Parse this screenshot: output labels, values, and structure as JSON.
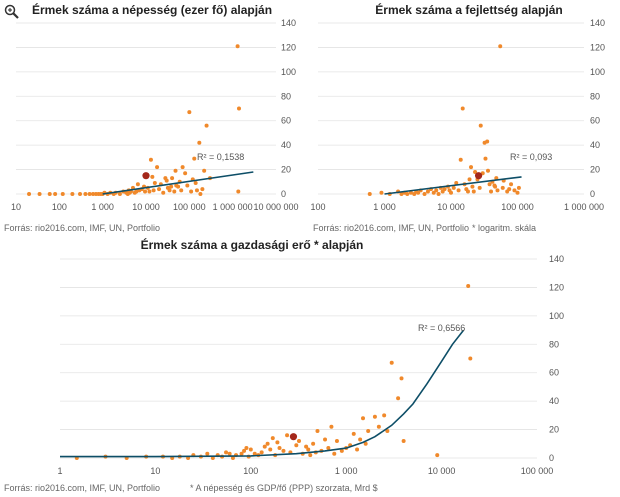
{
  "footnotes": {
    "source_top_left": "Forrás: rio2016.com, IMF, UN, Portfolio",
    "source_top_right": "Forrás: rio2016.com, IMF, UN, Portfolio",
    "note_top_right": "* logaritm. skála",
    "source_bottom": "Forrás: rio2016.com, IMF, UN, Portfolio",
    "note_bottom": "* A népesség és  GDP/fő (PPP) szorzata, Mrd $"
  },
  "icons": {
    "zoom": "magnifier-icon"
  },
  "colors": {
    "points": "#f0892b",
    "highlight": "#a4271a",
    "trend": "#0d4e67",
    "grid": "#e3e3e3"
  },
  "chart_data": [
    {
      "type": "scatter",
      "title": "Érmek száma a népesség (ezer fő) alapján",
      "xscale": "log",
      "xlim": [
        10,
        10000000
      ],
      "ylim": [
        0,
        140
      ],
      "x_tick_labels": [
        "10",
        "100",
        "1 000",
        "10 000",
        "100 000",
        "1 000 000",
        "10 000 000"
      ],
      "y_tick_labels": [
        "0",
        "20",
        "40",
        "60",
        "80",
        "100",
        "120",
        "140"
      ],
      "grid": "horizontal",
      "trend_label": "R² = 0,1538",
      "trend": {
        "x0": 1000,
        "y0": 0,
        "x1": 3000000,
        "y1": 18
      },
      "highlight": {
        "x": 10000,
        "y": 15
      },
      "points": [
        [
          20,
          0
        ],
        [
          35,
          0
        ],
        [
          60,
          0
        ],
        [
          80,
          0
        ],
        [
          120,
          0
        ],
        [
          200,
          0
        ],
        [
          300,
          0
        ],
        [
          400,
          0
        ],
        [
          500,
          0
        ],
        [
          600,
          0
        ],
        [
          700,
          0
        ],
        [
          800,
          0
        ],
        [
          900,
          0
        ],
        [
          1000,
          0
        ],
        [
          1100,
          1
        ],
        [
          1300,
          0
        ],
        [
          1500,
          1
        ],
        [
          1800,
          0
        ],
        [
          2000,
          1
        ],
        [
          2500,
          0
        ],
        [
          3000,
          2
        ],
        [
          3500,
          1
        ],
        [
          3800,
          0
        ],
        [
          4000,
          3
        ],
        [
          4200,
          1
        ],
        [
          4500,
          2
        ],
        [
          5000,
          5
        ],
        [
          5500,
          1
        ],
        [
          6000,
          2
        ],
        [
          6500,
          8
        ],
        [
          7000,
          3
        ],
        [
          8000,
          4
        ],
        [
          9000,
          6
        ],
        [
          9500,
          2
        ],
        [
          11000,
          5
        ],
        [
          12000,
          2
        ],
        [
          13000,
          28
        ],
        [
          14000,
          14
        ],
        [
          15000,
          3
        ],
        [
          16000,
          9
        ],
        [
          18000,
          22
        ],
        [
          20000,
          4
        ],
        [
          22000,
          8
        ],
        [
          25000,
          1
        ],
        [
          28000,
          13
        ],
        [
          30000,
          11
        ],
        [
          32000,
          5
        ],
        [
          35000,
          3
        ],
        [
          38000,
          6
        ],
        [
          40000,
          13
        ],
        [
          45000,
          2
        ],
        [
          48000,
          19
        ],
        [
          50000,
          7
        ],
        [
          55000,
          6
        ],
        [
          60000,
          10
        ],
        [
          65000,
          3
        ],
        [
          70000,
          22
        ],
        [
          80000,
          17
        ],
        [
          90000,
          7
        ],
        [
          100000,
          67
        ],
        [
          110000,
          2
        ],
        [
          120000,
          12
        ],
        [
          130000,
          29
        ],
        [
          140000,
          9
        ],
        [
          150000,
          3
        ],
        [
          170000,
          42
        ],
        [
          180000,
          0
        ],
        [
          200000,
          4
        ],
        [
          220000,
          19
        ],
        [
          250000,
          56
        ],
        [
          300000,
          13
        ],
        [
          1300000,
          121
        ],
        [
          1400000,
          70
        ],
        [
          1350000,
          2
        ]
      ]
    },
    {
      "type": "scatter",
      "title": "Érmek száma a fejlettség alapján",
      "xscale": "log",
      "xlim": [
        100,
        1000000
      ],
      "ylim": [
        0,
        140
      ],
      "x_tick_labels": [
        "100",
        "1 000",
        "10 000",
        "100 000",
        "1 000 000"
      ],
      "y_tick_labels": [
        "0",
        "20",
        "40",
        "60",
        "80",
        "100",
        "120",
        "140"
      ],
      "grid": "horizontal",
      "trend_label": "R² = 0,093",
      "trend": {
        "x0": 1000,
        "y0": 0,
        "x1": 115000,
        "y1": 14
      },
      "highlight": {
        "x": 26000,
        "y": 15
      },
      "points": [
        [
          600,
          0
        ],
        [
          900,
          1
        ],
        [
          1200,
          0
        ],
        [
          1600,
          2
        ],
        [
          1800,
          0
        ],
        [
          2000,
          1
        ],
        [
          2200,
          0
        ],
        [
          2500,
          1
        ],
        [
          2800,
          0
        ],
        [
          3000,
          2
        ],
        [
          3200,
          1
        ],
        [
          3500,
          3
        ],
        [
          4000,
          0
        ],
        [
          4500,
          2
        ],
        [
          5000,
          4
        ],
        [
          5500,
          1
        ],
        [
          6000,
          3
        ],
        [
          6500,
          0
        ],
        [
          7000,
          5
        ],
        [
          7500,
          2
        ],
        [
          8000,
          4
        ],
        [
          9000,
          6
        ],
        [
          9500,
          3
        ],
        [
          10000,
          1
        ],
        [
          11000,
          5
        ],
        [
          12000,
          9
        ],
        [
          13000,
          3
        ],
        [
          14000,
          28
        ],
        [
          15000,
          70
        ],
        [
          16000,
          8
        ],
        [
          17000,
          4
        ],
        [
          18000,
          2
        ],
        [
          19000,
          12
        ],
        [
          20000,
          22
        ],
        [
          21000,
          6
        ],
        [
          22000,
          2
        ],
        [
          23000,
          18
        ],
        [
          25000,
          12
        ],
        [
          27000,
          5
        ],
        [
          28000,
          56
        ],
        [
          30000,
          17
        ],
        [
          32000,
          42
        ],
        [
          33000,
          29
        ],
        [
          35000,
          43
        ],
        [
          36000,
          19
        ],
        [
          38000,
          8
        ],
        [
          40000,
          2
        ],
        [
          42000,
          10
        ],
        [
          45000,
          7
        ],
        [
          46000,
          6
        ],
        [
          48000,
          13
        ],
        [
          50000,
          3
        ],
        [
          55000,
          121
        ],
        [
          60000,
          5
        ],
        [
          62000,
          11
        ],
        [
          70000,
          2
        ],
        [
          75000,
          4
        ],
        [
          80000,
          8
        ],
        [
          90000,
          3
        ],
        [
          100000,
          1
        ],
        [
          105000,
          5
        ]
      ]
    },
    {
      "type": "scatter",
      "title": "Érmek száma a gazdasági erő *  alapján",
      "xscale": "log",
      "xlim": [
        1,
        100000
      ],
      "ylim": [
        0,
        140
      ],
      "x_tick_labels": [
        "1",
        "10",
        "100",
        "1 000",
        "10 000",
        "100 000"
      ],
      "y_tick_labels": [
        "0",
        "20",
        "40",
        "60",
        "80",
        "100",
        "120",
        "140"
      ],
      "grid": "horizontal",
      "trend_label": "R² = 0,6566",
      "trend_curve": [
        [
          1,
          1
        ],
        [
          10,
          1
        ],
        [
          100,
          1.5
        ],
        [
          300,
          3
        ],
        [
          600,
          5
        ],
        [
          1000,
          7
        ],
        [
          1500,
          11
        ],
        [
          2000,
          15
        ],
        [
          3000,
          23
        ],
        [
          4000,
          31
        ],
        [
          5000,
          38
        ],
        [
          7000,
          52
        ],
        [
          10000,
          68
        ],
        [
          13000,
          80
        ],
        [
          17000,
          90
        ]
      ],
      "highlight": {
        "x": 280,
        "y": 15
      },
      "points": [
        [
          1.5,
          0
        ],
        [
          3,
          1
        ],
        [
          5,
          0
        ],
        [
          8,
          1
        ],
        [
          12,
          1
        ],
        [
          15,
          0
        ],
        [
          18,
          1
        ],
        [
          22,
          0
        ],
        [
          25,
          2
        ],
        [
          30,
          1
        ],
        [
          35,
          3
        ],
        [
          40,
          0
        ],
        [
          45,
          2
        ],
        [
          50,
          1
        ],
        [
          55,
          4
        ],
        [
          60,
          3
        ],
        [
          65,
          0
        ],
        [
          70,
          2
        ],
        [
          80,
          3
        ],
        [
          85,
          5
        ],
        [
          90,
          7
        ],
        [
          95,
          1
        ],
        [
          100,
          6
        ],
        [
          110,
          3
        ],
        [
          120,
          2
        ],
        [
          130,
          4
        ],
        [
          140,
          8
        ],
        [
          150,
          10
        ],
        [
          160,
          6
        ],
        [
          170,
          14
        ],
        [
          180,
          2
        ],
        [
          190,
          11
        ],
        [
          200,
          7
        ],
        [
          220,
          5
        ],
        [
          240,
          16
        ],
        [
          260,
          4
        ],
        [
          300,
          9
        ],
        [
          320,
          12
        ],
        [
          350,
          3
        ],
        [
          380,
          8
        ],
        [
          400,
          6
        ],
        [
          420,
          2
        ],
        [
          450,
          10
        ],
        [
          480,
          4
        ],
        [
          500,
          19
        ],
        [
          550,
          5
        ],
        [
          600,
          13
        ],
        [
          650,
          7
        ],
        [
          700,
          22
        ],
        [
          750,
          3
        ],
        [
          800,
          12
        ],
        [
          900,
          5
        ],
        [
          1000,
          7
        ],
        [
          1100,
          9
        ],
        [
          1200,
          17
        ],
        [
          1300,
          6
        ],
        [
          1400,
          13
        ],
        [
          1500,
          28
        ],
        [
          1600,
          10
        ],
        [
          1700,
          19
        ],
        [
          2000,
          29
        ],
        [
          2200,
          22
        ],
        [
          2500,
          30
        ],
        [
          2700,
          19
        ],
        [
          3000,
          67
        ],
        [
          3500,
          42
        ],
        [
          3800,
          56
        ],
        [
          4000,
          12
        ],
        [
          9000,
          2
        ],
        [
          19000,
          121
        ],
        [
          20000,
          70
        ]
      ]
    }
  ]
}
